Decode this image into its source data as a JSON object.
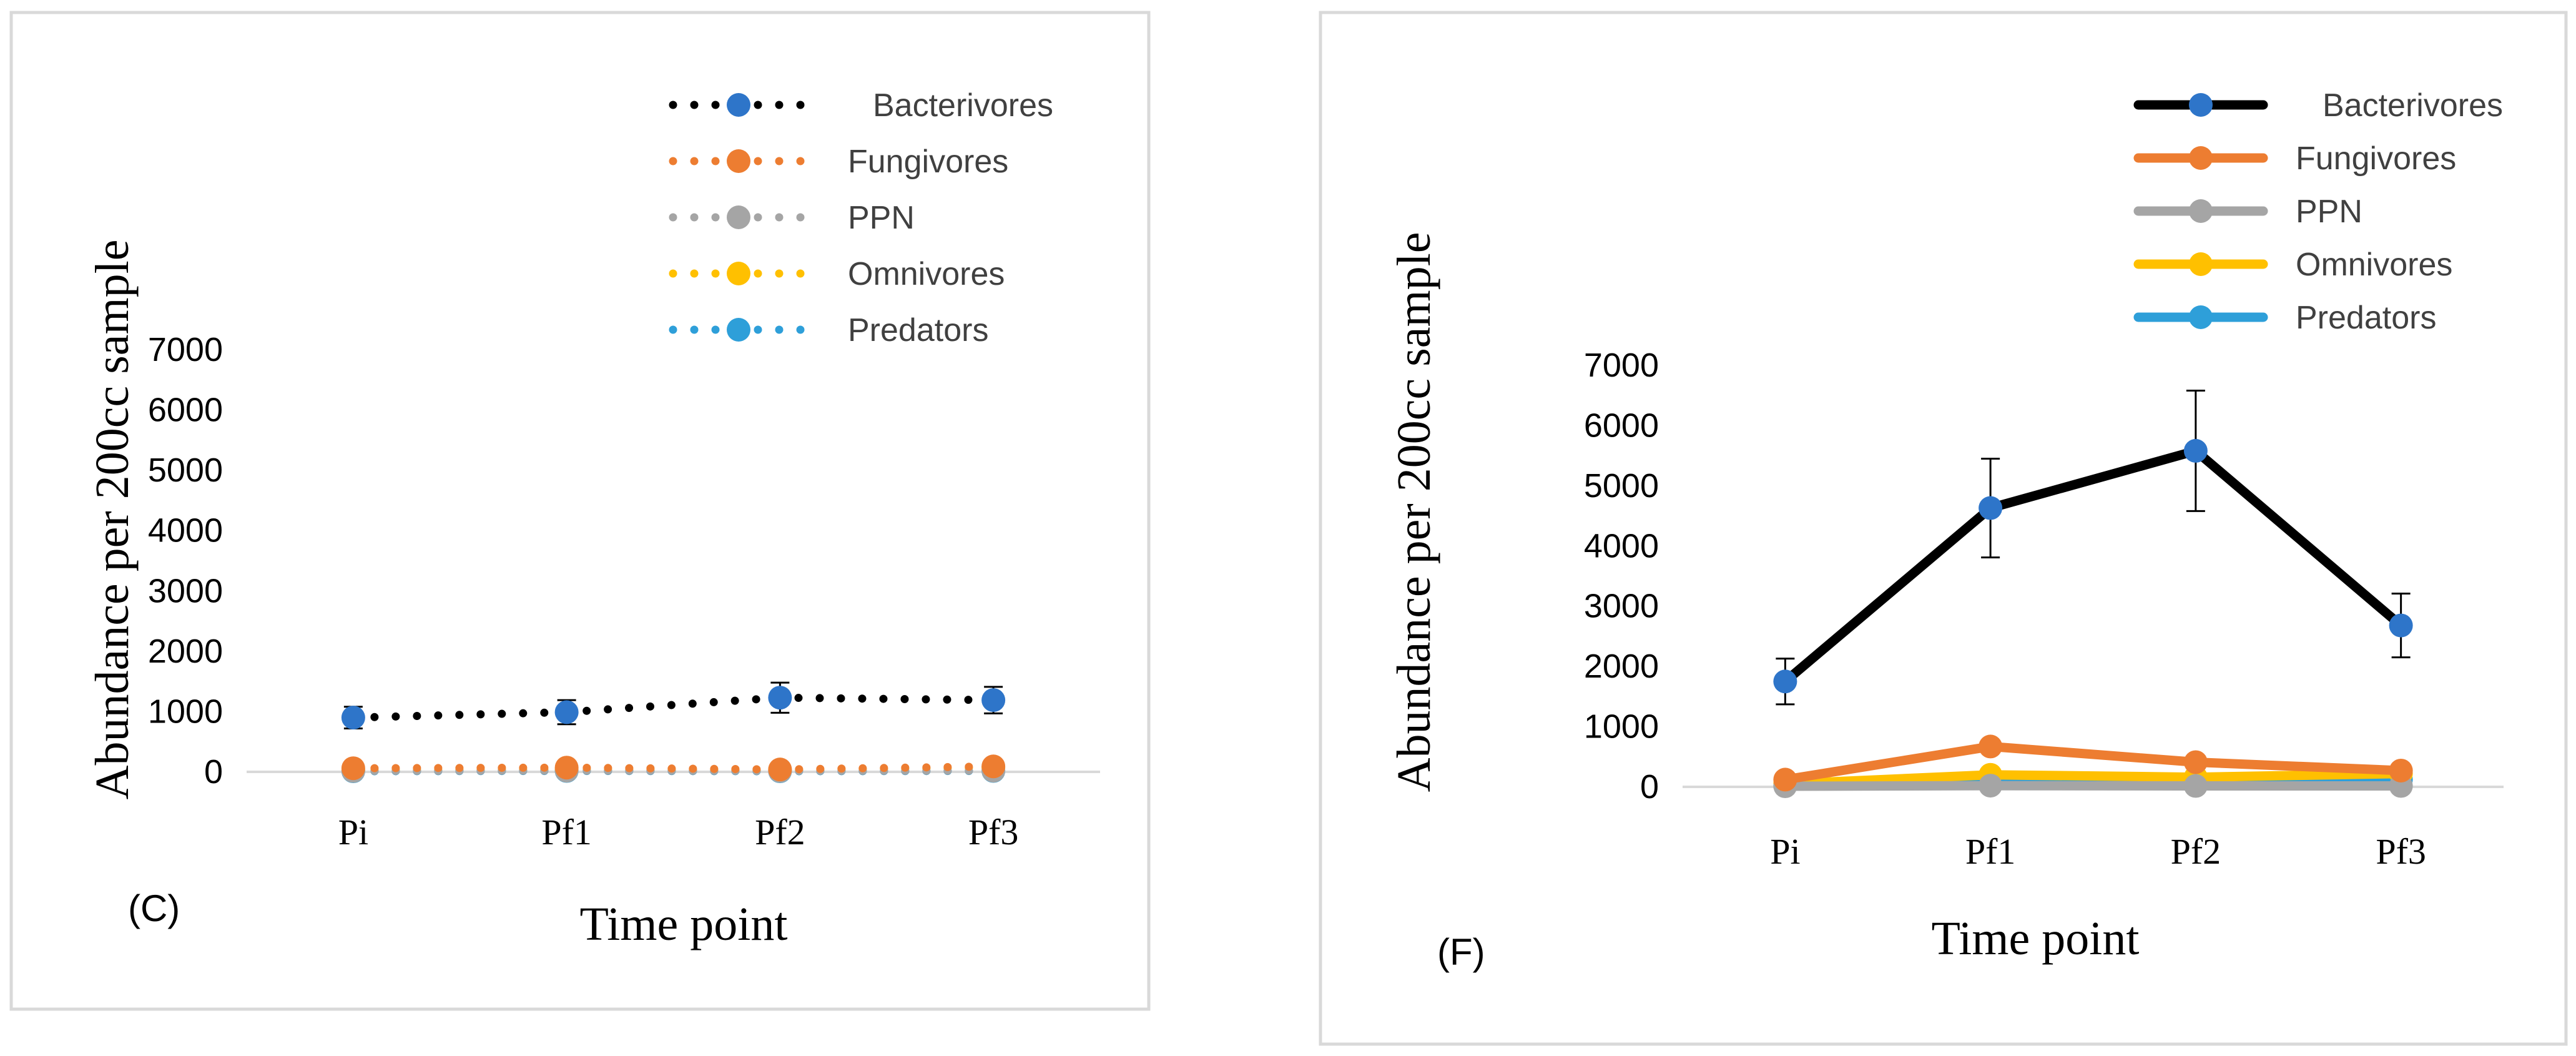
{
  "chart_data": [
    {
      "id": "C",
      "panel_label": "(C)",
      "type": "line",
      "line_style": "dotted",
      "title": "",
      "xlabel": "Time point",
      "ylabel": "Abundance per 200cc sample",
      "categories": [
        "Pi",
        "Pf1",
        "Pf2",
        "Pf3"
      ],
      "ylim": [
        0,
        7000
      ],
      "yticks": [
        0,
        1000,
        2000,
        3000,
        4000,
        5000,
        6000,
        7000
      ],
      "grid": false,
      "legend_position": "top-right",
      "series": [
        {
          "name": "Bacterivores",
          "values": [
            900,
            990,
            1230,
            1190
          ],
          "errors": [
            180,
            200,
            250,
            220
          ],
          "color": "#000000",
          "marker_color": "#2e75c9"
        },
        {
          "name": "Fungivores",
          "values": [
            60,
            70,
            40,
            90
          ],
          "errors": [
            0,
            0,
            0,
            0
          ],
          "color": "#ed7d31",
          "marker_color": "#ed7d31"
        },
        {
          "name": "PPN",
          "values": [
            15,
            20,
            15,
            20
          ],
          "errors": [
            0,
            0,
            0,
            0
          ],
          "color": "#a5a5a5",
          "marker_color": "#a5a5a5"
        },
        {
          "name": "Omnivores",
          "values": [
            30,
            40,
            30,
            70
          ],
          "errors": [
            0,
            0,
            0,
            0
          ],
          "color": "#ffc000",
          "marker_color": "#ffc000"
        },
        {
          "name": "Predators",
          "values": [
            10,
            15,
            10,
            15
          ],
          "errors": [
            0,
            0,
            0,
            0
          ],
          "color": "#2e9fd9",
          "marker_color": "#2e9fd9"
        }
      ]
    },
    {
      "id": "F",
      "panel_label": "(F)",
      "type": "line",
      "line_style": "solid",
      "title": "",
      "xlabel": "Time point",
      "ylabel": "Abundance per 200cc sample",
      "categories": [
        "Pi",
        "Pf1",
        "Pf2",
        "Pf3"
      ],
      "ylim": [
        0,
        7000
      ],
      "yticks": [
        0,
        1000,
        2000,
        3000,
        4000,
        5000,
        6000,
        7000
      ],
      "grid": false,
      "legend_position": "top-right",
      "series": [
        {
          "name": "Bacterivores",
          "values": [
            1750,
            4630,
            5580,
            2680
          ],
          "errors": [
            380,
            820,
            1000,
            530
          ],
          "color": "#000000",
          "marker_color": "#2e75c9"
        },
        {
          "name": "Fungivores",
          "values": [
            120,
            670,
            410,
            270
          ],
          "errors": [
            0,
            0,
            0,
            0
          ],
          "color": "#ed7d31",
          "marker_color": "#ed7d31"
        },
        {
          "name": "PPN",
          "values": [
            10,
            20,
            15,
            15
          ],
          "errors": [
            0,
            0,
            0,
            0
          ],
          "color": "#a5a5a5",
          "marker_color": "#a5a5a5"
        },
        {
          "name": "Omnivores",
          "values": [
            50,
            200,
            160,
            220
          ],
          "errors": [
            0,
            0,
            0,
            0
          ],
          "color": "#ffc000",
          "marker_color": "#ffc000"
        },
        {
          "name": "Predators",
          "values": [
            20,
            80,
            90,
            120
          ],
          "errors": [
            0,
            0,
            0,
            0
          ],
          "color": "#2e9fd9",
          "marker_color": "#2e9fd9"
        }
      ]
    }
  ]
}
